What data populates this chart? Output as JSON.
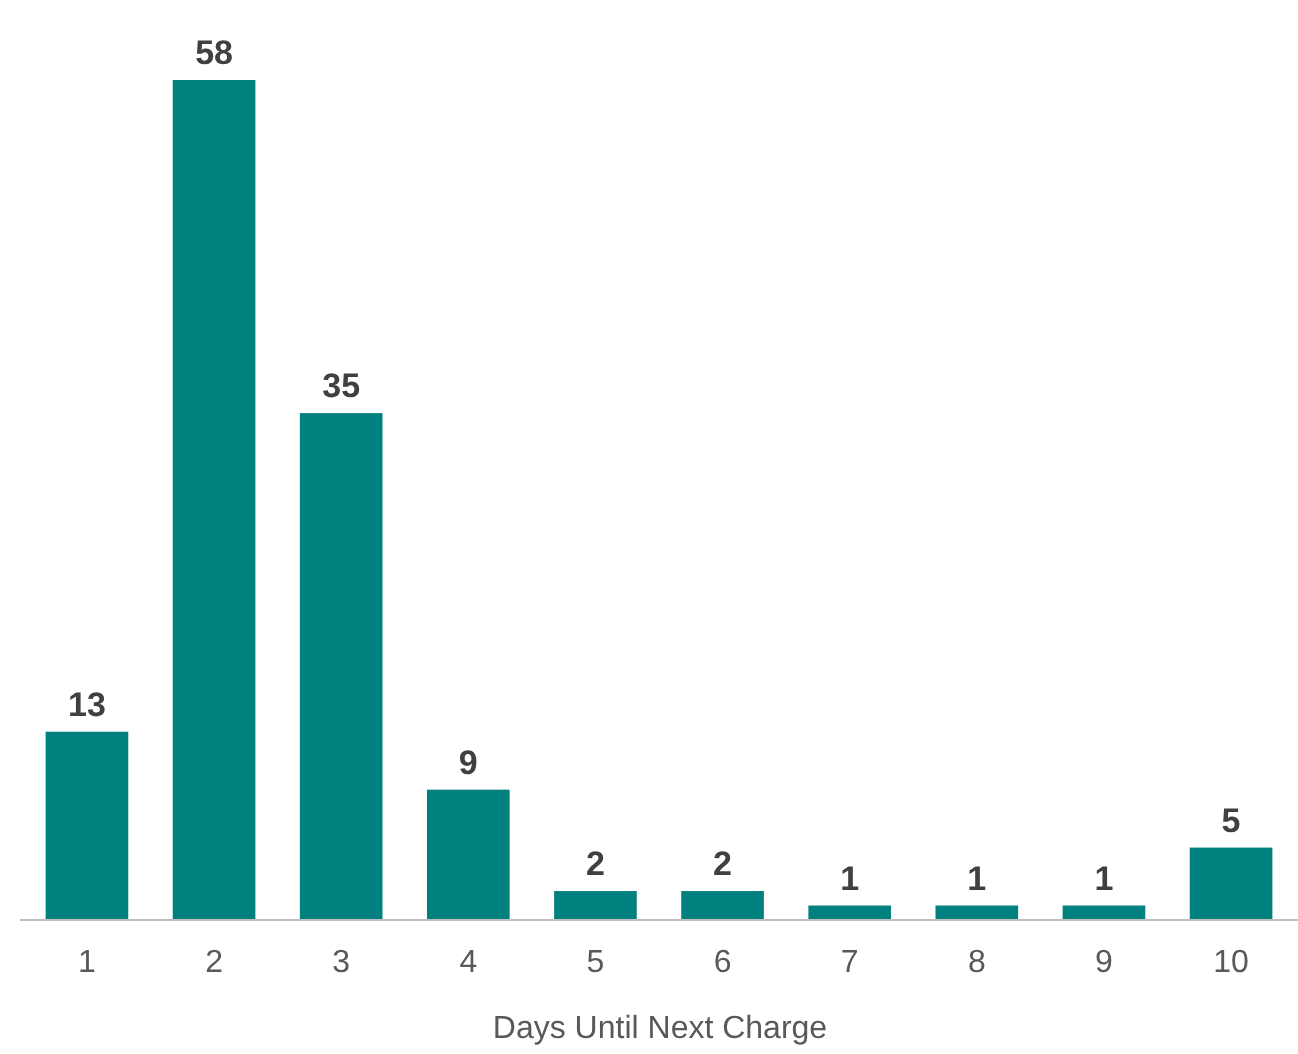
{
  "chart_data": {
    "type": "bar",
    "xlabel": "Days Until Next Charge",
    "categories": [
      "1",
      "2",
      "3",
      "4",
      "5",
      "6",
      "7",
      "8",
      "9",
      "10"
    ],
    "values": [
      13,
      58,
      35,
      9,
      2,
      2,
      1,
      1,
      1,
      5
    ],
    "color": "#00807f",
    "data_labels": true
  }
}
